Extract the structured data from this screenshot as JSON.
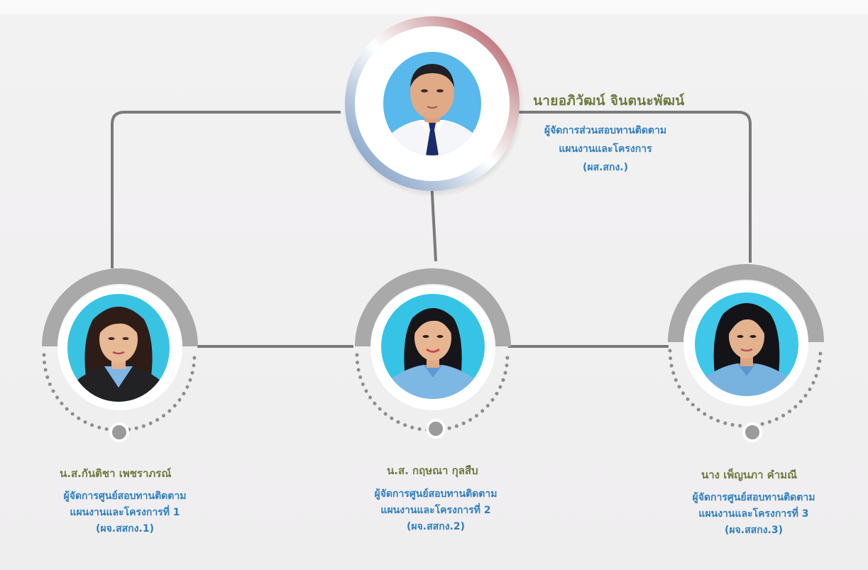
{
  "head": {
    "name": "นายอภิวัฒน์  จินตนะพัฒน์",
    "title_lines": [
      "ผู้จัดการส่วนสอบทานติดตาม",
      "แผนงานและโครงการ",
      "(ผส.สกง.)"
    ],
    "ring_colors": [
      "#a83a40",
      "#6c8fbe"
    ]
  },
  "members": [
    {
      "name": "น.ส.กันติชา เพชราภรณ์",
      "title_lines": [
        "ผู้จัดการศูนย์สอบทานติดตาม",
        "แผนงานและโครงการที่ 1",
        "(ผจ.สสกง.1)"
      ]
    },
    {
      "name": "น.ส. กฤษณา กุลสืบ",
      "title_lines": [
        "ผู้จัดการศูนย์สอบทานติดตาม",
        "แผนงานและโครงการที่ 2",
        "(ผจ.สสกง.2)"
      ]
    },
    {
      "name": "นาง เพ็ญนภา คำมณี",
      "title_lines": [
        "ผู้จัดการศูนย์สอบทานติดตาม",
        "แผนงานและโครงการที่ 3",
        "(ผจ.สสกง.3)"
      ]
    }
  ],
  "colors": {
    "name_text": "#6d7a3f",
    "title_text": "#2f7fbf",
    "connector": "#7a7a7a",
    "member_arc": "#a9a9a9"
  }
}
